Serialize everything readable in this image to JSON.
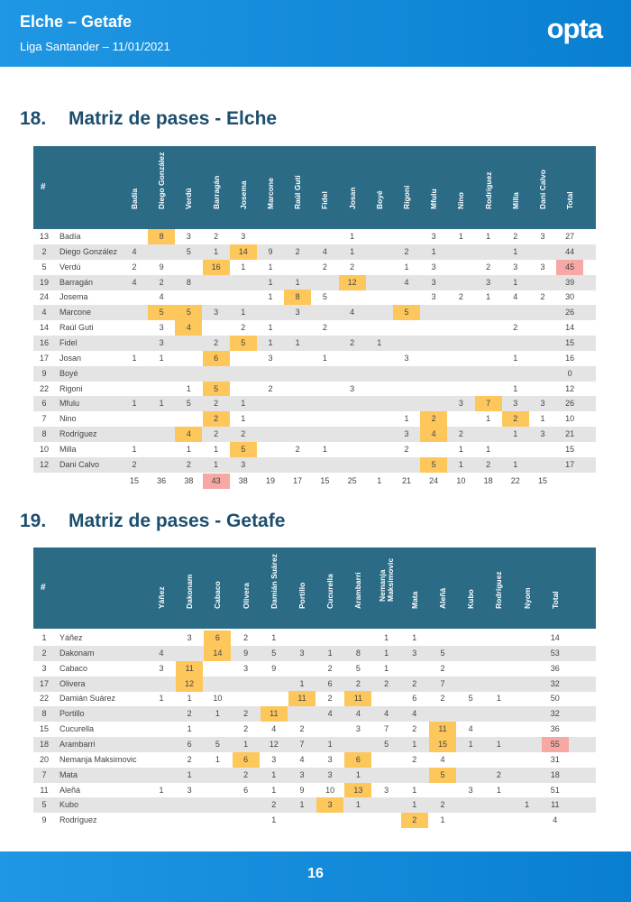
{
  "header": {
    "title": "Elche – Getafe",
    "subtitle": "Liga Santander – 11/01/2021",
    "logo": "opta"
  },
  "sections": [
    {
      "number": "18.",
      "title": "Matriz de pases - Elche",
      "hash_label": "#",
      "columns": [
        "Badía",
        "Diego González",
        "Verdú",
        "Barragán",
        "Josema",
        "Marcone",
        "Raúl Guti",
        "Fidel",
        "Josan",
        "Boyé",
        "Rigoni",
        "Mfulu",
        "Nino",
        "Rodríguez",
        "Milla",
        "Dani Calvo",
        "Total"
      ],
      "rows": [
        {
          "num": "13",
          "name": "Badía",
          "cells": [
            "",
            "8",
            "3",
            "2",
            "3",
            "",
            "",
            "",
            "1",
            "",
            "",
            "3",
            "1",
            "1",
            "2",
            "3",
            "27"
          ],
          "hl": [
            1
          ]
        },
        {
          "num": "2",
          "name": "Diego González",
          "cells": [
            "4",
            "",
            "5",
            "1",
            "14",
            "9",
            "2",
            "4",
            "1",
            "",
            "2",
            "1",
            "",
            "",
            "1",
            "",
            "44"
          ],
          "hl": [
            4
          ]
        },
        {
          "num": "5",
          "name": "Verdú",
          "cells": [
            "2",
            "9",
            "",
            "16",
            "1",
            "1",
            "",
            "2",
            "2",
            "",
            "1",
            "3",
            "",
            "2",
            "3",
            "3",
            "45"
          ],
          "hl": [
            3
          ],
          "hlr": [
            16
          ]
        },
        {
          "num": "19",
          "name": "Barragán",
          "cells": [
            "4",
            "2",
            "8",
            "",
            "",
            "1",
            "1",
            "",
            "12",
            "",
            "4",
            "3",
            "",
            "3",
            "1",
            "",
            "39"
          ],
          "hl": [
            8
          ]
        },
        {
          "num": "24",
          "name": "Josema",
          "cells": [
            "",
            "4",
            "",
            "",
            "",
            "1",
            "8",
            "5",
            "",
            "",
            "",
            "3",
            "2",
            "1",
            "4",
            "2",
            "30"
          ],
          "hl": [
            6
          ]
        },
        {
          "num": "4",
          "name": "Marcone",
          "cells": [
            "",
            "5",
            "5",
            "3",
            "1",
            "",
            "3",
            "",
            "4",
            "",
            "5",
            "",
            "",
            "",
            "",
            "",
            "26"
          ],
          "hl": [
            1,
            2,
            10
          ]
        },
        {
          "num": "14",
          "name": "Raúl Guti",
          "cells": [
            "",
            "3",
            "4",
            "",
            "2",
            "1",
            "",
            "2",
            "",
            "",
            "",
            "",
            "",
            "",
            "2",
            "",
            "14"
          ],
          "hl": [
            2
          ]
        },
        {
          "num": "16",
          "name": "Fidel",
          "cells": [
            "",
            "3",
            "",
            "2",
            "5",
            "1",
            "1",
            "",
            "2",
            "1",
            "",
            "",
            "",
            "",
            "",
            "",
            "15"
          ],
          "hl": [
            4
          ]
        },
        {
          "num": "17",
          "name": "Josan",
          "cells": [
            "1",
            "1",
            "",
            "6",
            "",
            "3",
            "",
            "1",
            "",
            "",
            "3",
            "",
            "",
            "",
            "1",
            "",
            "16"
          ],
          "hl": [
            3
          ]
        },
        {
          "num": "9",
          "name": "Boyé",
          "cells": [
            "",
            "",
            "",
            "",
            "",
            "",
            "",
            "",
            "",
            "",
            "",
            "",
            "",
            "",
            "",
            "",
            "0"
          ]
        },
        {
          "num": "22",
          "name": "Rigoni",
          "cells": [
            "",
            "",
            "1",
            "5",
            "",
            "2",
            "",
            "",
            "3",
            "",
            "",
            "",
            "",
            "",
            "1",
            "",
            "12"
          ],
          "hl": [
            3
          ]
        },
        {
          "num": "6",
          "name": "Mfulu",
          "cells": [
            "1",
            "1",
            "5",
            "2",
            "1",
            "",
            "",
            "",
            "",
            "",
            "",
            "",
            "3",
            "7",
            "3",
            "3",
            "26"
          ],
          "hl": [
            13
          ]
        },
        {
          "num": "7",
          "name": "Nino",
          "cells": [
            "",
            "",
            "",
            "2",
            "1",
            "",
            "",
            "",
            "",
            "",
            "1",
            "2",
            "",
            "1",
            "2",
            "1",
            "10"
          ],
          "hl": [
            3,
            11,
            14
          ]
        },
        {
          "num": "8",
          "name": "Rodríguez",
          "cells": [
            "",
            "",
            "4",
            "2",
            "2",
            "",
            "",
            "",
            "",
            "",
            "3",
            "4",
            "2",
            "",
            "1",
            "3",
            "21"
          ],
          "hl": [
            2,
            11
          ]
        },
        {
          "num": "10",
          "name": "Milla",
          "cells": [
            "1",
            "",
            "1",
            "1",
            "5",
            "",
            "2",
            "1",
            "",
            "",
            "2",
            "",
            "1",
            "1",
            "",
            "",
            "15"
          ],
          "hl": [
            4
          ]
        },
        {
          "num": "12",
          "name": "Dani Calvo",
          "cells": [
            "2",
            "",
            "2",
            "1",
            "3",
            "",
            "",
            "",
            "",
            "",
            "",
            "5",
            "1",
            "2",
            "1",
            "",
            "17"
          ],
          "hl": [
            11
          ]
        }
      ],
      "totals": [
        "15",
        "36",
        "38",
        "43",
        "38",
        "19",
        "17",
        "15",
        "25",
        "1",
        "21",
        "24",
        "10",
        "18",
        "22",
        "15"
      ],
      "totals_hlr": [
        3
      ]
    },
    {
      "number": "19.",
      "title": "Matriz de pases - Getafe",
      "hash_label": "#",
      "columns": [
        "Yáñez",
        "Dakonam",
        "Cabaco",
        "Olivera",
        "Damián Suárez",
        "Portillo",
        "Cucurella",
        "Arambarri",
        "Nemanja Maksimovic",
        "Mata",
        "Aleñá",
        "Kubo",
        "Rodríguez",
        "Nyom",
        "Total"
      ],
      "rows": [
        {
          "num": "1",
          "name": "Yáñez",
          "cells": [
            "",
            "3",
            "6",
            "2",
            "1",
            "",
            "",
            "",
            "1",
            "1",
            "",
            "",
            "",
            "",
            "14"
          ],
          "hl": [
            2
          ]
        },
        {
          "num": "2",
          "name": "Dakonam",
          "cells": [
            "4",
            "",
            "14",
            "9",
            "5",
            "3",
            "1",
            "8",
            "1",
            "3",
            "5",
            "",
            "",
            "",
            "53"
          ],
          "hl": [
            2
          ]
        },
        {
          "num": "3",
          "name": "Cabaco",
          "cells": [
            "3",
            "11",
            "",
            "3",
            "9",
            "",
            "2",
            "5",
            "1",
            "",
            "2",
            "",
            "",
            "",
            "36"
          ],
          "hl": [
            1
          ]
        },
        {
          "num": "17",
          "name": "Olivera",
          "cells": [
            "",
            "12",
            "",
            "",
            "",
            "1",
            "6",
            "2",
            "2",
            "2",
            "7",
            "",
            "",
            "",
            "32"
          ],
          "hl": [
            1
          ]
        },
        {
          "num": "22",
          "name": "Damián Suárez",
          "cells": [
            "1",
            "1",
            "10",
            "",
            "",
            "11",
            "2",
            "11",
            "",
            "6",
            "2",
            "5",
            "1",
            "",
            "50"
          ],
          "hl": [
            5,
            7
          ]
        },
        {
          "num": "8",
          "name": "Portillo",
          "cells": [
            "",
            "2",
            "1",
            "2",
            "11",
            "",
            "4",
            "4",
            "4",
            "4",
            "",
            "",
            "",
            "",
            "32"
          ],
          "hl": [
            4
          ]
        },
        {
          "num": "15",
          "name": "Cucurella",
          "cells": [
            "",
            "1",
            "",
            "2",
            "4",
            "2",
            "",
            "3",
            "7",
            "2",
            "11",
            "4",
            "",
            "",
            "36"
          ],
          "hl": [
            10
          ]
        },
        {
          "num": "18",
          "name": "Arambarri",
          "cells": [
            "",
            "6",
            "5",
            "1",
            "12",
            "7",
            "1",
            "",
            "5",
            "1",
            "15",
            "1",
            "1",
            "",
            "55"
          ],
          "hl": [
            10
          ],
          "hlr": [
            14
          ]
        },
        {
          "num": "20",
          "name": "Nemanja Maksimovic",
          "cells": [
            "",
            "2",
            "1",
            "6",
            "3",
            "4",
            "3",
            "6",
            "",
            "2",
            "4",
            "",
            "",
            "",
            "31"
          ],
          "hl": [
            3,
            7
          ]
        },
        {
          "num": "7",
          "name": "Mata",
          "cells": [
            "",
            "1",
            "",
            "2",
            "1",
            "3",
            "3",
            "1",
            "",
            "",
            "5",
            "",
            "2",
            "",
            "18"
          ],
          "hl": [
            10
          ]
        },
        {
          "num": "11",
          "name": "Aleñá",
          "cells": [
            "1",
            "3",
            "",
            "6",
            "1",
            "9",
            "10",
            "13",
            "3",
            "1",
            "",
            "3",
            "1",
            "",
            "51"
          ],
          "hl": [
            7
          ]
        },
        {
          "num": "5",
          "name": "Kubo",
          "cells": [
            "",
            "",
            "",
            "",
            "2",
            "1",
            "3",
            "1",
            "",
            "1",
            "2",
            "",
            "",
            "1",
            "11"
          ],
          "hl": [
            6
          ]
        },
        {
          "num": "9",
          "name": "Rodríguez",
          "cells": [
            "",
            "",
            "",
            "",
            "1",
            "",
            "",
            "",
            "",
            "2",
            "1",
            "",
            "",
            "",
            "4"
          ],
          "hl": [
            9
          ]
        }
      ]
    }
  ],
  "footer": {
    "page": "16"
  }
}
